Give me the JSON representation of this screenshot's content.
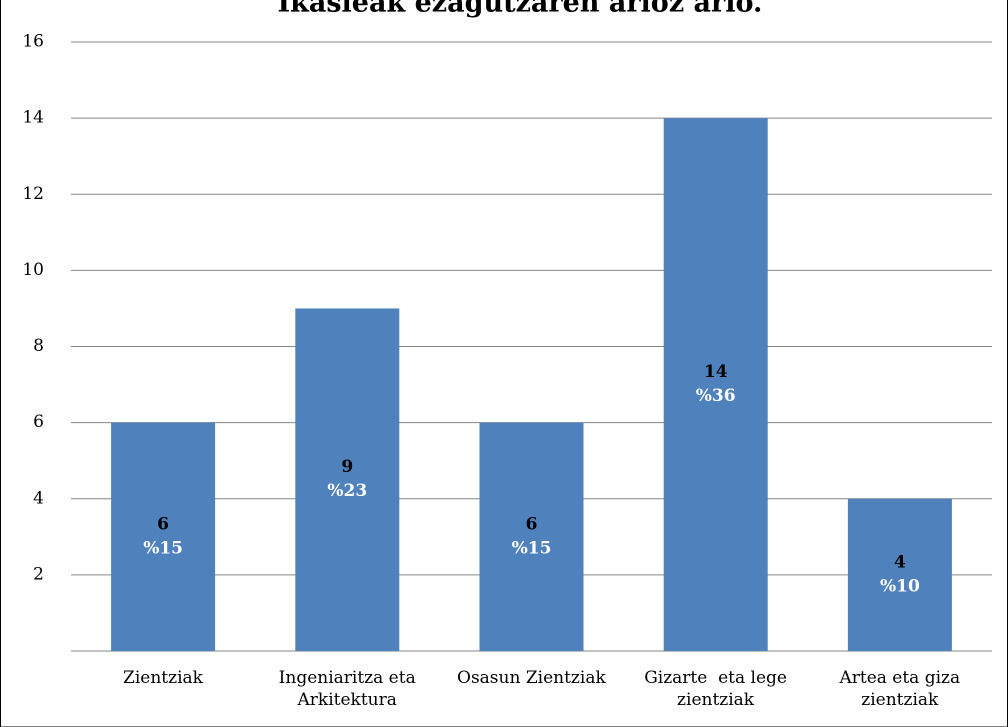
{
  "chart_data": {
    "type": "bar",
    "title": "Ikasleak ezagutzaren arloz arlo.",
    "categories": [
      "Zientziak",
      "Ingeniaritza eta Arkitektura",
      "Osasun Zientziak",
      "Gizarte  eta lege zientziak",
      "Artea eta giza zientziak"
    ],
    "values": [
      6,
      9,
      6,
      14,
      4
    ],
    "shares": [
      15,
      23,
      15,
      36,
      10
    ],
    "share_labels": [
      "%15",
      "%23",
      "%15",
      "%36",
      "%10"
    ],
    "color": "#4f81bd",
    "ylim": [
      0,
      16
    ],
    "yticks": [
      2,
      4,
      6,
      8,
      10,
      12,
      14,
      16
    ],
    "grid": true
  }
}
